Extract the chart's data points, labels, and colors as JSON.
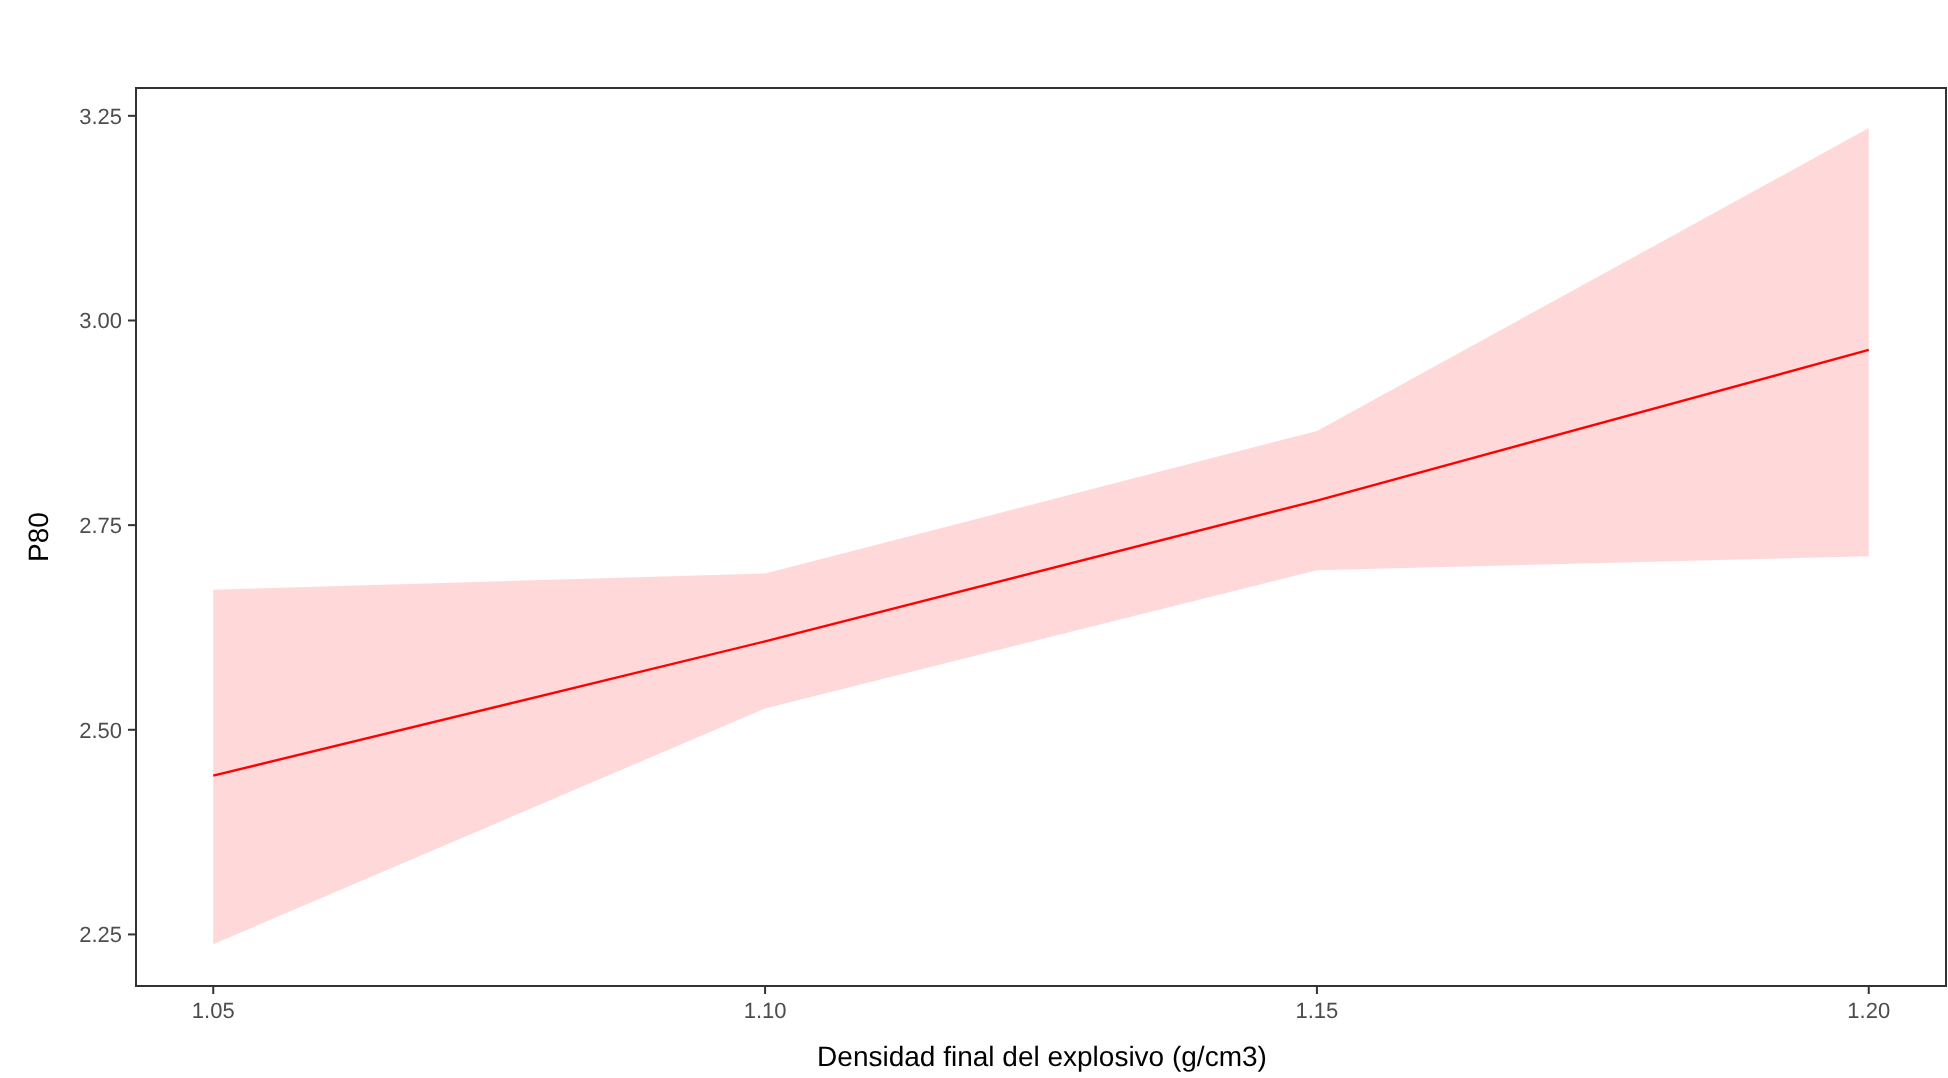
{
  "chart_data": {
    "type": "line",
    "xlabel": "Densidad final del explosivo (g/cm3)",
    "ylabel": "P80",
    "x": [
      1.05,
      1.1,
      1.15,
      1.2
    ],
    "series": [
      {
        "color": "#ff0000",
        "values": [
          2.444,
          2.608,
          2.78,
          2.964
        ],
        "lower": [
          2.238,
          2.526,
          2.695,
          2.712
        ],
        "upper": [
          2.671,
          2.691,
          2.865,
          3.235
        ]
      }
    ],
    "xlim": [
      1.043,
      1.207
    ],
    "xticks": [
      {
        "value": 1.05,
        "label": "1.05"
      },
      {
        "value": 1.1,
        "label": "1.10"
      },
      {
        "value": 1.15,
        "label": "1.15"
      },
      {
        "value": 1.2,
        "label": "1.20"
      }
    ],
    "ylim": [
      2.187,
      3.284
    ],
    "yticks": [
      {
        "value": 2.25,
        "label": "2.25"
      },
      {
        "value": 2.5,
        "label": "2.50"
      },
      {
        "value": 2.75,
        "label": "2.75"
      },
      {
        "value": 3,
        "label": "3.00"
      },
      {
        "value": 3.25,
        "label": "3.25"
      }
    ],
    "grid": false,
    "line_style": "solid",
    "marker": "none"
  }
}
